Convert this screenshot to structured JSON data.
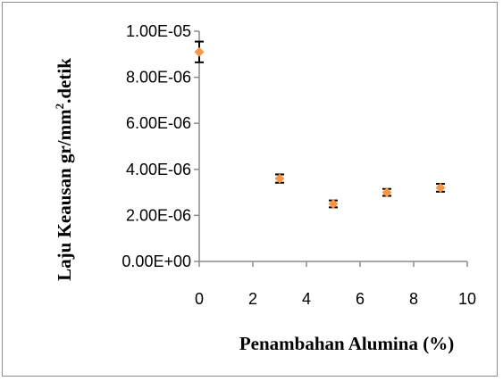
{
  "chart_data": {
    "type": "scatter",
    "title": "",
    "xlabel": "Penambahan Alumina (%)",
    "ylabel_main": "Laju Keausan gr/mm",
    "ylabel_sup": "2",
    "ylabel_tail": ".detik",
    "xlim": [
      0,
      10
    ],
    "ylim": [
      0,
      1e-05
    ],
    "x_ticks": [
      0,
      2,
      4,
      6,
      8,
      10
    ],
    "x_tick_labels": [
      "0",
      "2",
      "4",
      "6",
      "8",
      "10"
    ],
    "y_ticks": [
      0,
      2e-06,
      4e-06,
      6e-06,
      8e-06,
      1e-05
    ],
    "y_tick_labels": [
      "0.00E+00",
      "2.00E-06",
      "4.00E-06",
      "6.00E-06",
      "8.00E-06",
      "1.00E-05"
    ],
    "grid": false,
    "legend": "none",
    "marker_color": "#f79646",
    "errorbar_color": "#000000",
    "points": [
      {
        "x": 0,
        "y": 9.1e-06,
        "err": 4.5e-07
      },
      {
        "x": 3,
        "y": 3.6e-06,
        "err": 1.8e-07
      },
      {
        "x": 5,
        "y": 2.5e-06,
        "err": 1.5e-07
      },
      {
        "x": 7,
        "y": 3e-06,
        "err": 1.5e-07
      },
      {
        "x": 9,
        "y": 3.2e-06,
        "err": 1.7e-07
      }
    ]
  }
}
